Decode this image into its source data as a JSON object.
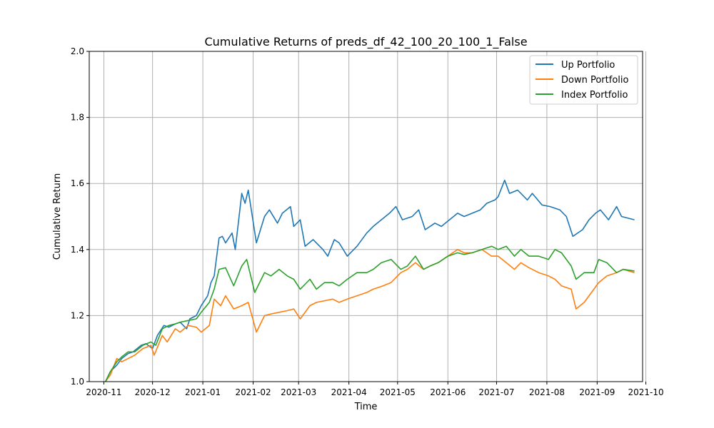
{
  "chart_data": {
    "type": "line",
    "title": "Cumulative Returns of preds_df_42_100_20_100_1_False",
    "xlabel": "Time",
    "ylabel": "Cumulative Return",
    "x_type": "date",
    "xlim": [
      "2020-10-23",
      "2021-09-29"
    ],
    "ylim": [
      1.0,
      2.0
    ],
    "grid": true,
    "legend_position": "top-right",
    "x_ticks": [
      "2020-11",
      "2020-12",
      "2021-01",
      "2021-02",
      "2021-03",
      "2021-04",
      "2021-05",
      "2021-06",
      "2021-07",
      "2021-08",
      "2021-09",
      "2021-10"
    ],
    "y_ticks": [
      "1.0",
      "1.2",
      "1.4",
      "1.6",
      "1.8",
      "2.0"
    ],
    "series": [
      {
        "name": "Up Portfolio",
        "color": "#1f77b4",
        "points": [
          [
            "2020-11-02",
            1.0
          ],
          [
            "2020-11-05",
            1.03
          ],
          [
            "2020-11-09",
            1.05
          ],
          [
            "2020-11-12",
            1.07
          ],
          [
            "2020-11-16",
            1.085
          ],
          [
            "2020-11-19",
            1.09
          ],
          [
            "2020-11-24",
            1.11
          ],
          [
            "2020-11-27",
            1.115
          ],
          [
            "2020-12-01",
            1.1
          ],
          [
            "2020-12-04",
            1.14
          ],
          [
            "2020-12-08",
            1.17
          ],
          [
            "2020-12-11",
            1.165
          ],
          [
            "2020-12-15",
            1.175
          ],
          [
            "2020-12-18",
            1.18
          ],
          [
            "2020-12-22",
            1.16
          ],
          [
            "2020-12-24",
            1.19
          ],
          [
            "2020-12-28",
            1.2
          ],
          [
            "2020-12-31",
            1.23
          ],
          [
            "2021-01-04",
            1.26
          ],
          [
            "2021-01-06",
            1.3
          ],
          [
            "2021-01-08",
            1.32
          ],
          [
            "2021-01-11",
            1.435
          ],
          [
            "2021-01-13",
            1.44
          ],
          [
            "2021-01-15",
            1.42
          ],
          [
            "2021-01-19",
            1.45
          ],
          [
            "2021-01-21",
            1.4
          ],
          [
            "2021-01-25",
            1.57
          ],
          [
            "2021-01-27",
            1.54
          ],
          [
            "2021-01-29",
            1.58
          ],
          [
            "2021-02-03",
            1.42
          ],
          [
            "2021-02-08",
            1.5
          ],
          [
            "2021-02-11",
            1.52
          ],
          [
            "2021-02-16",
            1.48
          ],
          [
            "2021-02-19",
            1.51
          ],
          [
            "2021-02-24",
            1.53
          ],
          [
            "2021-02-26",
            1.47
          ],
          [
            "2021-03-02",
            1.49
          ],
          [
            "2021-03-05",
            1.41
          ],
          [
            "2021-03-10",
            1.43
          ],
          [
            "2021-03-16",
            1.4
          ],
          [
            "2021-03-19",
            1.38
          ],
          [
            "2021-03-23",
            1.43
          ],
          [
            "2021-03-26",
            1.42
          ],
          [
            "2021-03-31",
            1.38
          ],
          [
            "2021-04-06",
            1.41
          ],
          [
            "2021-04-12",
            1.45
          ],
          [
            "2021-04-16",
            1.47
          ],
          [
            "2021-04-21",
            1.49
          ],
          [
            "2021-04-26",
            1.51
          ],
          [
            "2021-04-30",
            1.53
          ],
          [
            "2021-05-04",
            1.49
          ],
          [
            "2021-05-10",
            1.5
          ],
          [
            "2021-05-14",
            1.52
          ],
          [
            "2021-05-18",
            1.46
          ],
          [
            "2021-05-24",
            1.48
          ],
          [
            "2021-05-28",
            1.47
          ],
          [
            "2021-06-02",
            1.49
          ],
          [
            "2021-06-07",
            1.51
          ],
          [
            "2021-06-11",
            1.5
          ],
          [
            "2021-06-16",
            1.51
          ],
          [
            "2021-06-21",
            1.52
          ],
          [
            "2021-06-25",
            1.54
          ],
          [
            "2021-06-30",
            1.55
          ],
          [
            "2021-07-02",
            1.56
          ],
          [
            "2021-07-06",
            1.61
          ],
          [
            "2021-07-09",
            1.57
          ],
          [
            "2021-07-14",
            1.58
          ],
          [
            "2021-07-20",
            1.55
          ],
          [
            "2021-07-23",
            1.57
          ],
          [
            "2021-07-29",
            1.535
          ],
          [
            "2021-08-03",
            1.53
          ],
          [
            "2021-08-09",
            1.52
          ],
          [
            "2021-08-13",
            1.5
          ],
          [
            "2021-08-17",
            1.44
          ],
          [
            "2021-08-23",
            1.46
          ],
          [
            "2021-08-27",
            1.49
          ],
          [
            "2021-08-31",
            1.51
          ],
          [
            "2021-09-03",
            1.52
          ],
          [
            "2021-09-08",
            1.49
          ],
          [
            "2021-09-13",
            1.53
          ],
          [
            "2021-09-16",
            1.5
          ],
          [
            "2021-09-24",
            1.49
          ]
        ]
      },
      {
        "name": "Down Portfolio",
        "color": "#ff7f0e",
        "points": [
          [
            "2020-11-02",
            1.0
          ],
          [
            "2020-11-05",
            1.02
          ],
          [
            "2020-11-09",
            1.07
          ],
          [
            "2020-11-12",
            1.06
          ],
          [
            "2020-11-16",
            1.07
          ],
          [
            "2020-11-20",
            1.08
          ],
          [
            "2020-11-25",
            1.1
          ],
          [
            "2020-11-30",
            1.11
          ],
          [
            "2020-12-02",
            1.08
          ],
          [
            "2020-12-07",
            1.14
          ],
          [
            "2020-12-10",
            1.12
          ],
          [
            "2020-12-15",
            1.16
          ],
          [
            "2020-12-18",
            1.15
          ],
          [
            "2020-12-23",
            1.17
          ],
          [
            "2020-12-28",
            1.165
          ],
          [
            "2020-12-31",
            1.15
          ],
          [
            "2021-01-05",
            1.17
          ],
          [
            "2021-01-08",
            1.25
          ],
          [
            "2021-01-12",
            1.23
          ],
          [
            "2021-01-15",
            1.26
          ],
          [
            "2021-01-20",
            1.22
          ],
          [
            "2021-01-25",
            1.23
          ],
          [
            "2021-01-29",
            1.24
          ],
          [
            "2021-02-03",
            1.15
          ],
          [
            "2021-02-08",
            1.2
          ],
          [
            "2021-02-12",
            1.205
          ],
          [
            "2021-02-17",
            1.21
          ],
          [
            "2021-02-22",
            1.215
          ],
          [
            "2021-02-26",
            1.22
          ],
          [
            "2021-03-02",
            1.19
          ],
          [
            "2021-03-08",
            1.23
          ],
          [
            "2021-03-12",
            1.24
          ],
          [
            "2021-03-17",
            1.245
          ],
          [
            "2021-03-22",
            1.25
          ],
          [
            "2021-03-26",
            1.24
          ],
          [
            "2021-03-31",
            1.25
          ],
          [
            "2021-04-06",
            1.26
          ],
          [
            "2021-04-12",
            1.27
          ],
          [
            "2021-04-16",
            1.28
          ],
          [
            "2021-04-22",
            1.29
          ],
          [
            "2021-04-27",
            1.3
          ],
          [
            "2021-05-03",
            1.33
          ],
          [
            "2021-05-07",
            1.34
          ],
          [
            "2021-05-12",
            1.36
          ],
          [
            "2021-05-17",
            1.34
          ],
          [
            "2021-05-21",
            1.35
          ],
          [
            "2021-05-26",
            1.36
          ],
          [
            "2021-06-01",
            1.38
          ],
          [
            "2021-06-07",
            1.4
          ],
          [
            "2021-06-11",
            1.39
          ],
          [
            "2021-06-16",
            1.39
          ],
          [
            "2021-06-22",
            1.4
          ],
          [
            "2021-06-28",
            1.38
          ],
          [
            "2021-07-02",
            1.38
          ],
          [
            "2021-07-07",
            1.36
          ],
          [
            "2021-07-12",
            1.34
          ],
          [
            "2021-07-16",
            1.36
          ],
          [
            "2021-07-21",
            1.345
          ],
          [
            "2021-07-27",
            1.33
          ],
          [
            "2021-08-02",
            1.32
          ],
          [
            "2021-08-06",
            1.31
          ],
          [
            "2021-08-10",
            1.29
          ],
          [
            "2021-08-16",
            1.28
          ],
          [
            "2021-08-19",
            1.22
          ],
          [
            "2021-08-24",
            1.24
          ],
          [
            "2021-08-30",
            1.28
          ],
          [
            "2021-09-02",
            1.3
          ],
          [
            "2021-09-07",
            1.32
          ],
          [
            "2021-09-13",
            1.33
          ],
          [
            "2021-09-17",
            1.34
          ],
          [
            "2021-09-24",
            1.33
          ]
        ]
      },
      {
        "name": "Index Portfolio",
        "color": "#2ca02c",
        "points": [
          [
            "2020-11-02",
            1.0
          ],
          [
            "2020-11-05",
            1.03
          ],
          [
            "2020-11-09",
            1.06
          ],
          [
            "2020-11-12",
            1.075
          ],
          [
            "2020-11-16",
            1.09
          ],
          [
            "2020-11-20",
            1.09
          ],
          [
            "2020-11-25",
            1.11
          ],
          [
            "2020-11-30",
            1.12
          ],
          [
            "2020-12-03",
            1.11
          ],
          [
            "2020-12-07",
            1.16
          ],
          [
            "2020-12-11",
            1.17
          ],
          [
            "2020-12-15",
            1.175
          ],
          [
            "2020-12-18",
            1.18
          ],
          [
            "2020-12-23",
            1.185
          ],
          [
            "2020-12-28",
            1.19
          ],
          [
            "2020-12-31",
            1.21
          ],
          [
            "2021-01-05",
            1.24
          ],
          [
            "2021-01-08",
            1.28
          ],
          [
            "2021-01-11",
            1.34
          ],
          [
            "2021-01-15",
            1.345
          ],
          [
            "2021-01-20",
            1.29
          ],
          [
            "2021-01-25",
            1.35
          ],
          [
            "2021-01-28",
            1.37
          ],
          [
            "2021-02-02",
            1.27
          ],
          [
            "2021-02-08",
            1.33
          ],
          [
            "2021-02-12",
            1.32
          ],
          [
            "2021-02-17",
            1.34
          ],
          [
            "2021-02-22",
            1.32
          ],
          [
            "2021-02-26",
            1.31
          ],
          [
            "2021-03-02",
            1.28
          ],
          [
            "2021-03-08",
            1.31
          ],
          [
            "2021-03-12",
            1.28
          ],
          [
            "2021-03-17",
            1.3
          ],
          [
            "2021-03-22",
            1.3
          ],
          [
            "2021-03-26",
            1.29
          ],
          [
            "2021-03-31",
            1.31
          ],
          [
            "2021-04-06",
            1.33
          ],
          [
            "2021-04-12",
            1.33
          ],
          [
            "2021-04-16",
            1.34
          ],
          [
            "2021-04-21",
            1.36
          ],
          [
            "2021-04-27",
            1.37
          ],
          [
            "2021-05-03",
            1.34
          ],
          [
            "2021-05-07",
            1.35
          ],
          [
            "2021-05-12",
            1.38
          ],
          [
            "2021-05-17",
            1.34
          ],
          [
            "2021-05-21",
            1.35
          ],
          [
            "2021-05-26",
            1.36
          ],
          [
            "2021-06-01",
            1.38
          ],
          [
            "2021-06-07",
            1.39
          ],
          [
            "2021-06-11",
            1.385
          ],
          [
            "2021-06-16",
            1.39
          ],
          [
            "2021-06-22",
            1.4
          ],
          [
            "2021-06-28",
            1.41
          ],
          [
            "2021-07-02",
            1.4
          ],
          [
            "2021-07-07",
            1.41
          ],
          [
            "2021-07-12",
            1.38
          ],
          [
            "2021-07-16",
            1.4
          ],
          [
            "2021-07-21",
            1.38
          ],
          [
            "2021-07-27",
            1.38
          ],
          [
            "2021-08-02",
            1.37
          ],
          [
            "2021-08-06",
            1.4
          ],
          [
            "2021-08-10",
            1.39
          ],
          [
            "2021-08-16",
            1.35
          ],
          [
            "2021-08-19",
            1.31
          ],
          [
            "2021-08-24",
            1.33
          ],
          [
            "2021-08-30",
            1.33
          ],
          [
            "2021-09-02",
            1.37
          ],
          [
            "2021-09-07",
            1.36
          ],
          [
            "2021-09-13",
            1.33
          ],
          [
            "2021-09-17",
            1.34
          ],
          [
            "2021-09-24",
            1.335
          ]
        ]
      }
    ]
  }
}
